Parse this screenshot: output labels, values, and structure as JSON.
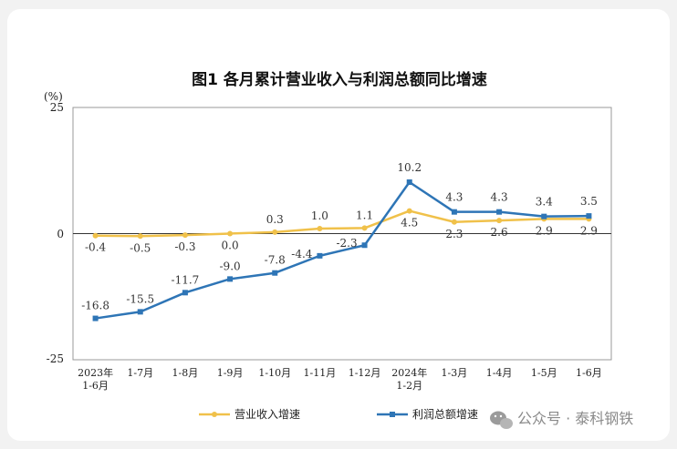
{
  "chart_data": {
    "type": "line",
    "title": "图1 各月累计营业收入与利润总额同比增速",
    "unit": "(%)",
    "ylim": [
      -25,
      25
    ],
    "yticks": [
      "25",
      "0",
      "-25"
    ],
    "categories": [
      [
        "2023年",
        "1-6月"
      ],
      [
        "1-7月"
      ],
      [
        "1-8月"
      ],
      [
        "1-9月"
      ],
      [
        "1-10月"
      ],
      [
        "1-11月"
      ],
      [
        "1-12月"
      ],
      [
        "2024年",
        "1-2月"
      ],
      [
        "1-3月"
      ],
      [
        "1-4月"
      ],
      [
        "1-5月"
      ],
      [
        "1-6月"
      ]
    ],
    "series": [
      {
        "name": "营业收入增速",
        "color": "#f0c14a",
        "values": [
          -0.4,
          -0.5,
          -0.3,
          0.0,
          0.3,
          1.0,
          1.1,
          4.5,
          2.3,
          2.6,
          2.9,
          2.9
        ],
        "labels": [
          "-0.4",
          "-0.5",
          "-0.3",
          "0.0",
          "0.3",
          "1.0",
          "1.1",
          "4.5",
          "2.3",
          "2.6",
          "2.9",
          "2.9"
        ]
      },
      {
        "name": "利润总额增速",
        "color": "#2e75b6",
        "values": [
          -16.8,
          -15.5,
          -11.7,
          -9.0,
          -7.8,
          -4.4,
          -2.3,
          10.2,
          4.3,
          4.3,
          3.4,
          3.5
        ],
        "labels": [
          "-16.8",
          "-15.5",
          "-11.7",
          "-9.0",
          "-7.8",
          "-4.4",
          "-2.3",
          "10.2",
          "4.3",
          "4.3",
          "3.4",
          "3.5"
        ]
      }
    ],
    "grid": false,
    "legend": "bottom"
  },
  "watermark": {
    "text": "公众号 · 泰科钢铁",
    "icon": "wechat-icon"
  }
}
